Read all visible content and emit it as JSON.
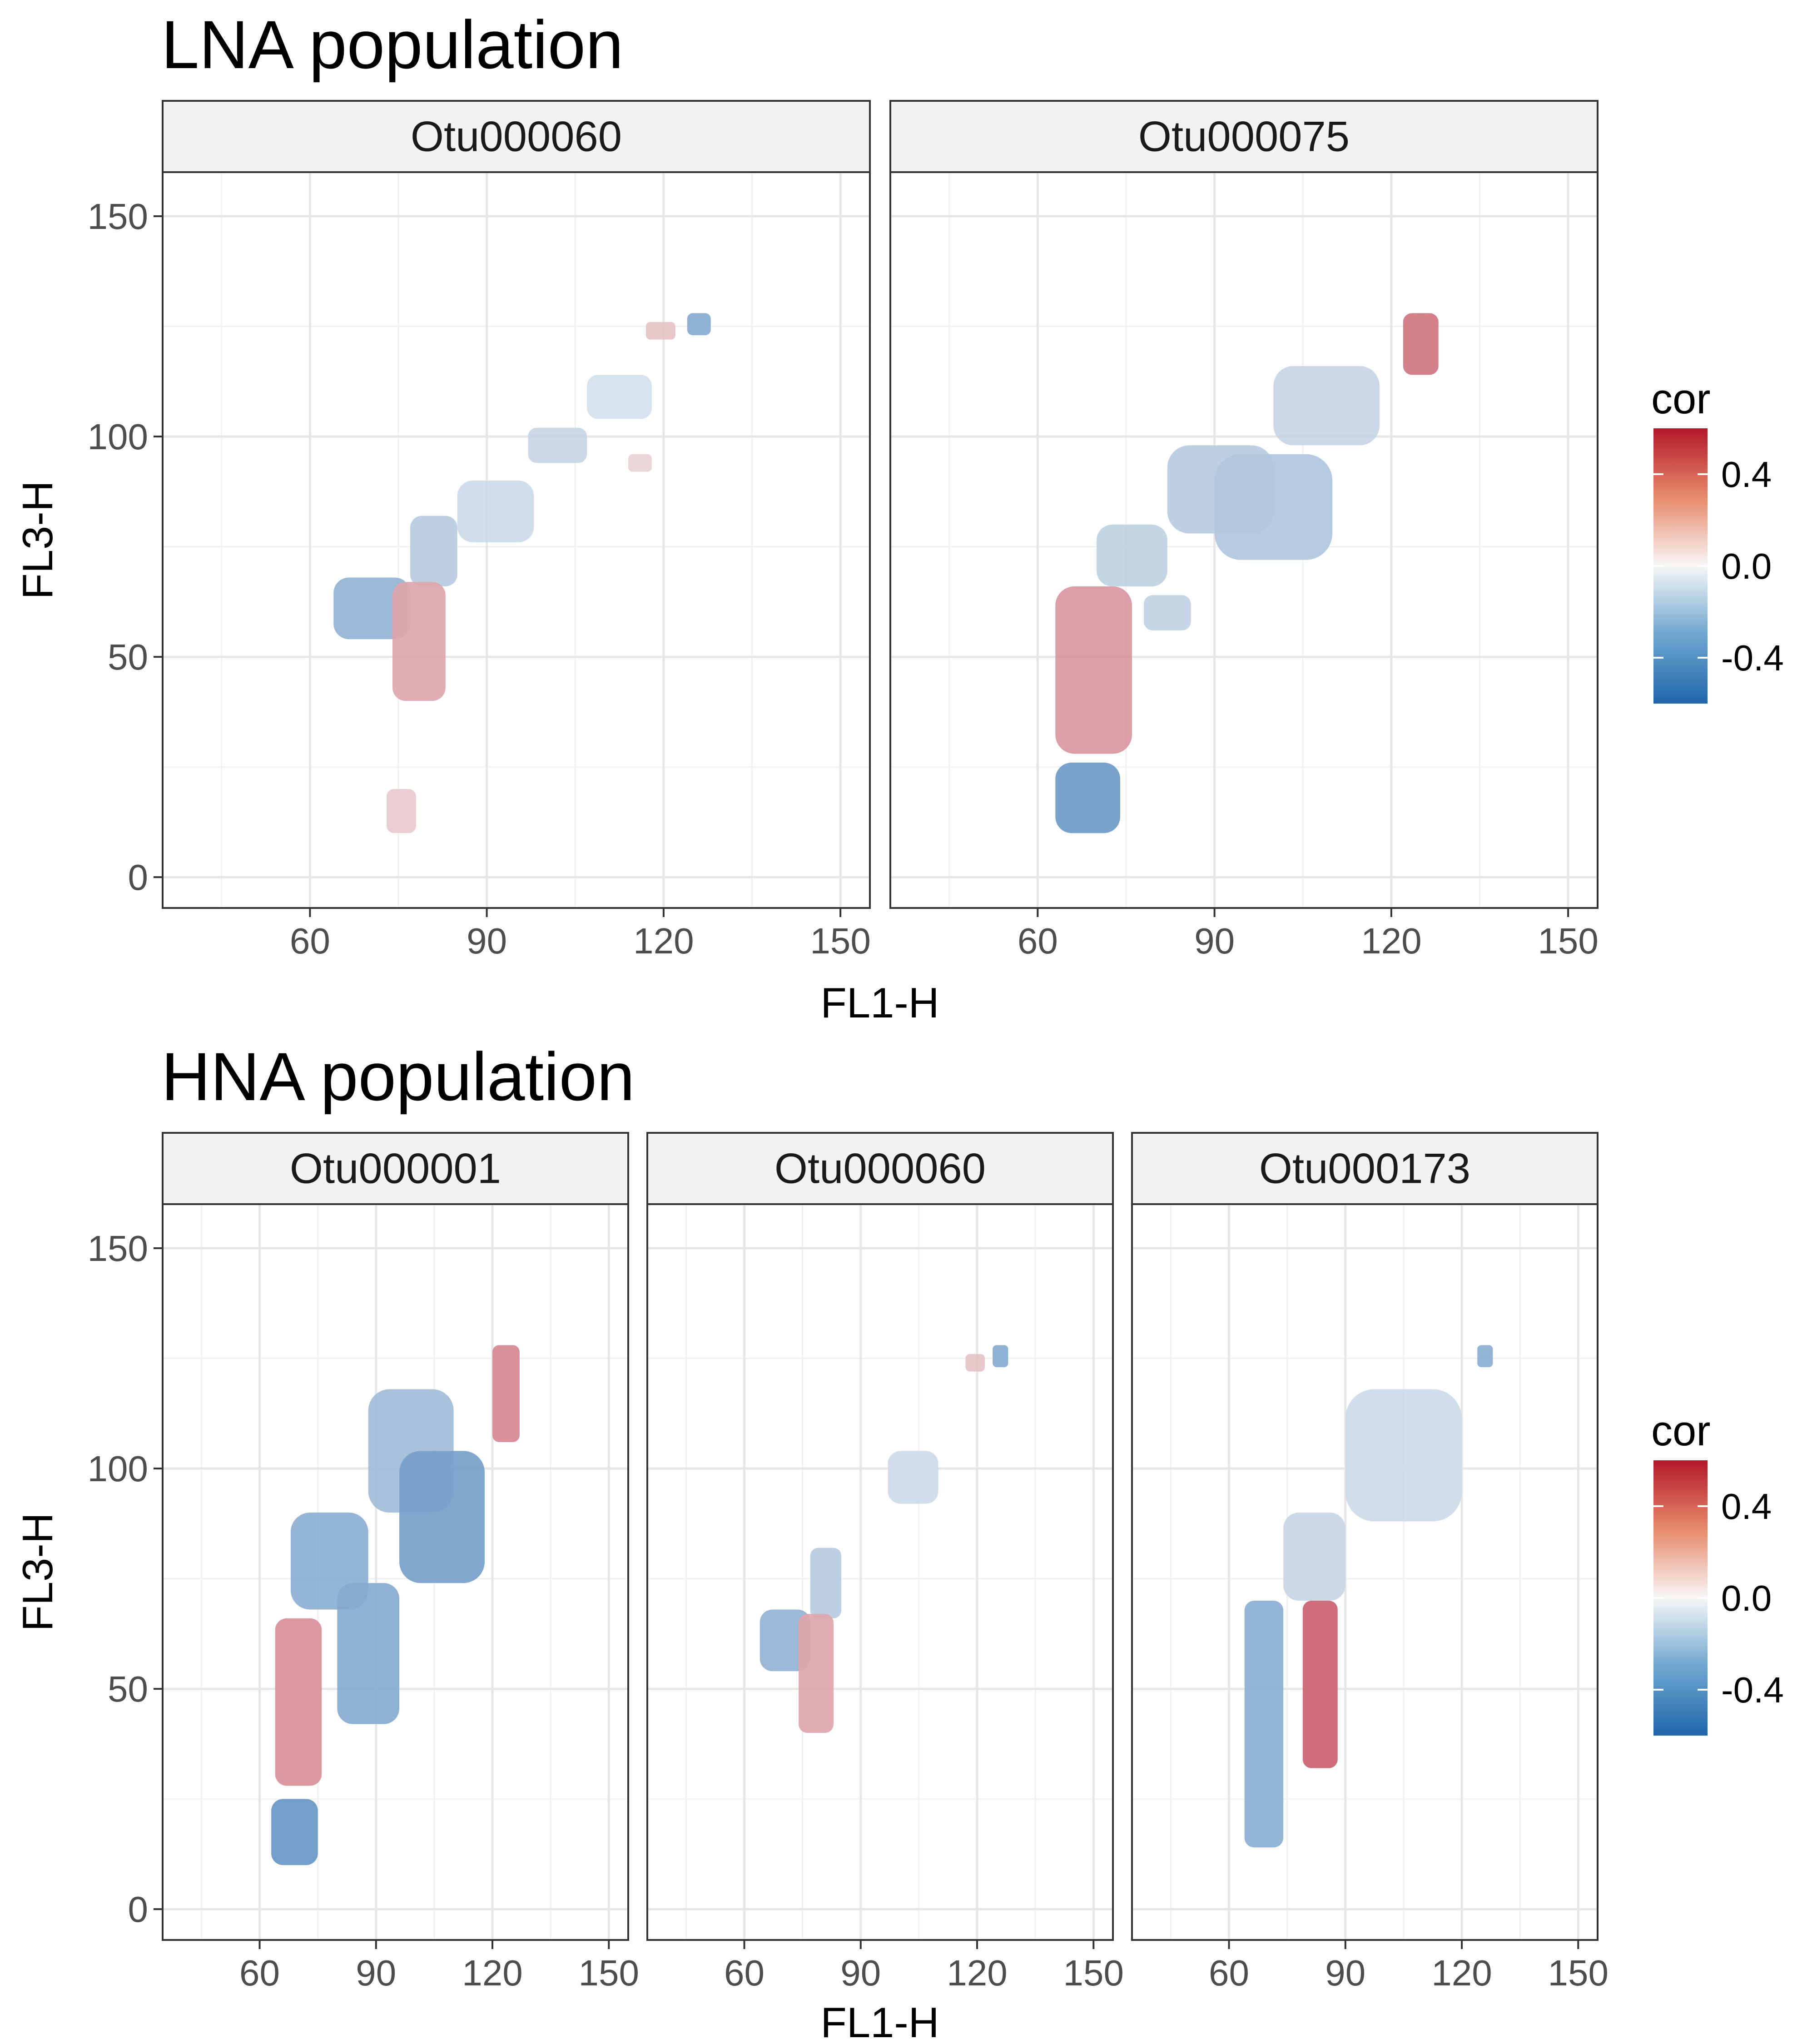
{
  "chart_data": [
    {
      "type": "heatmap",
      "title": "LNA population",
      "xlabel": "FL1-H",
      "ylabel": "FL3-H",
      "xlim": [
        35,
        155
      ],
      "ylim": [
        -7,
        160
      ],
      "xticks": [
        60,
        90,
        120,
        150
      ],
      "yticks": [
        0,
        50,
        100,
        150
      ],
      "grid": true,
      "legend": {
        "title": "cor",
        "position": "right",
        "ticks": [
          0.4,
          0.0,
          -0.4
        ],
        "tick_labels": [
          "0.4",
          "0.0",
          "-0.4"
        ],
        "range": [
          -0.6,
          0.6
        ]
      },
      "color_scale": {
        "low": "#2166ac",
        "mid": "#f7f7f7",
        "high": "#b2182b"
      },
      "panels": [
        {
          "name": "Otu000060",
          "regions": [
            {
              "x": [
                64,
                77
              ],
              "y": [
                54,
                68
              ],
              "cor": -0.28
            },
            {
              "x": [
                77,
                85
              ],
              "y": [
                66,
                82
              ],
              "cor": -0.18
            },
            {
              "x": [
                85,
                98
              ],
              "y": [
                76,
                90
              ],
              "cor": -0.12
            },
            {
              "x": [
                97,
                107
              ],
              "y": [
                94,
                102
              ],
              "cor": -0.14
            },
            {
              "x": [
                107,
                118
              ],
              "y": [
                104,
                114
              ],
              "cor": -0.1
            },
            {
              "x": [
                74,
                83
              ],
              "y": [
                40,
                67
              ],
              "cor": 0.22
            },
            {
              "x": [
                73,
                78
              ],
              "y": [
                10,
                20
              ],
              "cor": 0.12
            },
            {
              "x": [
                114,
                118
              ],
              "y": [
                92,
                96
              ],
              "cor": 0.1
            },
            {
              "x": [
                117,
                122
              ],
              "y": [
                122,
                126
              ],
              "cor": 0.14
            },
            {
              "x": [
                124,
                128
              ],
              "y": [
                123,
                128
              ],
              "cor": -0.32
            }
          ]
        },
        {
          "name": "Otu000075",
          "regions": [
            {
              "x": [
                63,
                74
              ],
              "y": [
                10,
                26
              ],
              "cor": -0.38
            },
            {
              "x": [
                63,
                76
              ],
              "y": [
                28,
                66
              ],
              "cor": 0.26
            },
            {
              "x": [
                70,
                82
              ],
              "y": [
                66,
                80
              ],
              "cor": -0.16
            },
            {
              "x": [
                82,
                100
              ],
              "y": [
                78,
                98
              ],
              "cor": -0.18
            },
            {
              "x": [
                100,
                118
              ],
              "y": [
                98,
                116
              ],
              "cor": -0.14
            },
            {
              "x": [
                90,
                110
              ],
              "y": [
                72,
                96
              ],
              "cor": -0.2
            },
            {
              "x": [
                78,
                86
              ],
              "y": [
                56,
                64
              ],
              "cor": -0.15
            },
            {
              "x": [
                122,
                128
              ],
              "y": [
                114,
                128
              ],
              "cor": 0.35
            }
          ]
        }
      ]
    },
    {
      "type": "heatmap",
      "title": "HNA population",
      "xlabel": "FL1-H",
      "ylabel": "FL3-H",
      "xlim": [
        35,
        155
      ],
      "ylim": [
        -7,
        160
      ],
      "xticks": [
        60,
        90,
        120,
        150
      ],
      "yticks": [
        0,
        50,
        100,
        150
      ],
      "grid": true,
      "legend": {
        "title": "cor",
        "position": "right",
        "ticks": [
          0.4,
          0.0,
          -0.4
        ],
        "tick_labels": [
          "0.4",
          "0.0",
          "-0.4"
        ],
        "range": [
          -0.6,
          0.6
        ]
      },
      "color_scale": {
        "low": "#2166ac",
        "mid": "#f7f7f7",
        "high": "#b2182b"
      },
      "panels": [
        {
          "name": "Otu000001",
          "regions": [
            {
              "x": [
                63,
                75
              ],
              "y": [
                10,
                25
              ],
              "cor": -0.4
            },
            {
              "x": [
                64,
                76
              ],
              "y": [
                28,
                66
              ],
              "cor": 0.28
            },
            {
              "x": [
                68,
                88
              ],
              "y": [
                68,
                90
              ],
              "cor": -0.3
            },
            {
              "x": [
                88,
                110
              ],
              "y": [
                90,
                118
              ],
              "cor": -0.24
            },
            {
              "x": [
                80,
                96
              ],
              "y": [
                42,
                74
              ],
              "cor": -0.32
            },
            {
              "x": [
                96,
                118
              ],
              "y": [
                74,
                104
              ],
              "cor": -0.36
            },
            {
              "x": [
                120,
                127
              ],
              "y": [
                106,
                128
              ],
              "cor": 0.3
            }
          ]
        },
        {
          "name": "Otu000060",
          "regions": [
            {
              "x": [
                64,
                77
              ],
              "y": [
                54,
                68
              ],
              "cor": -0.28
            },
            {
              "x": [
                77,
                85
              ],
              "y": [
                66,
                82
              ],
              "cor": -0.18
            },
            {
              "x": [
                97,
                110
              ],
              "y": [
                92,
                104
              ],
              "cor": -0.12
            },
            {
              "x": [
                74,
                83
              ],
              "y": [
                40,
                67
              ],
              "cor": 0.22
            },
            {
              "x": [
                117,
                122
              ],
              "y": [
                122,
                126
              ],
              "cor": 0.14
            },
            {
              "x": [
                124,
                128
              ],
              "y": [
                123,
                128
              ],
              "cor": -0.32
            }
          ]
        },
        {
          "name": "Otu000173",
          "regions": [
            {
              "x": [
                64,
                74
              ],
              "y": [
                14,
                70
              ],
              "cor": -0.3
            },
            {
              "x": [
                74,
                90
              ],
              "y": [
                70,
                90
              ],
              "cor": -0.14
            },
            {
              "x": [
                90,
                120
              ],
              "y": [
                88,
                118
              ],
              "cor": -0.12
            },
            {
              "x": [
                79,
                88
              ],
              "y": [
                32,
                70
              ],
              "cor": 0.4
            },
            {
              "x": [
                124,
                128
              ],
              "y": [
                123,
                128
              ],
              "cor": -0.3
            }
          ]
        }
      ]
    }
  ]
}
